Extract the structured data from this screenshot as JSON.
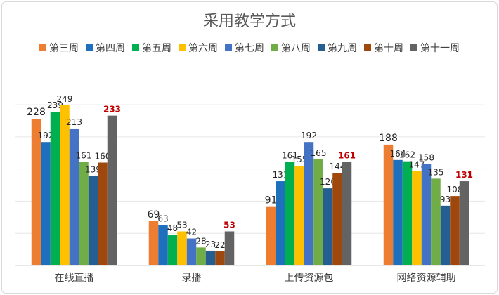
{
  "chart_data": {
    "type": "bar",
    "title": "采用教学方式",
    "categories": [
      "在线直播",
      "录播",
      "上传资源包",
      "网络资源辅助"
    ],
    "series": [
      {
        "name": "第三周",
        "color": "#ED7D31",
        "values": [
          228,
          69,
          91,
          188
        ]
      },
      {
        "name": "第四周",
        "color": "#1F6FBF",
        "values": [
          192,
          63,
          131,
          164
        ]
      },
      {
        "name": "第五周",
        "color": "#00B050",
        "values": [
          239,
          48,
          161,
          162
        ]
      },
      {
        "name": "第六周",
        "color": "#FFC000",
        "values": [
          249,
          53,
          155,
          147
        ]
      },
      {
        "name": "第七周",
        "color": "#4472C4",
        "values": [
          213,
          42,
          192,
          158
        ]
      },
      {
        "name": "第八周",
        "color": "#70AD47",
        "values": [
          161,
          28,
          165,
          135
        ]
      },
      {
        "name": "第九周",
        "color": "#255E91",
        "values": [
          139,
          23,
          120,
          93
        ]
      },
      {
        "name": "第十周",
        "color": "#9E480E",
        "values": [
          160,
          22,
          144,
          108
        ]
      },
      {
        "name": "第十一周",
        "color": "#636363",
        "values": [
          233,
          53,
          161,
          131
        ],
        "label_color": "#C00000"
      }
    ],
    "ylim": [
      0,
      250
    ],
    "grid": true,
    "legend_position": "top"
  }
}
